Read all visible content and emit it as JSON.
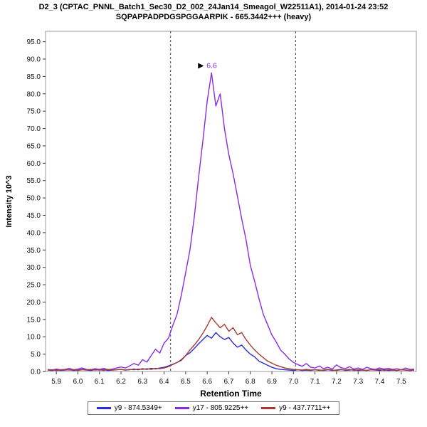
{
  "chart_data": {
    "type": "line",
    "title": "D2_3 (CPTAC_PNNL_Batch1_Sec30_D2_002_24Jan14_Smeagol_W22511A1), 2014-01-24 23:52",
    "subtitle": "SQPAPPADPDGSPGGAARPIK - 665.3442+++ (heavy)",
    "xlabel": "Retention Time",
    "ylabel": "Intensity 10^3",
    "xlim": [
      5.85,
      7.57
    ],
    "ylim": [
      0,
      98
    ],
    "x_ticks": [
      5.9,
      6.0,
      6.1,
      6.2,
      6.3,
      6.4,
      6.5,
      6.6,
      6.7,
      6.8,
      6.9,
      7.0,
      7.1,
      7.2,
      7.3,
      7.4,
      7.5
    ],
    "y_ticks": [
      0,
      5,
      10,
      15,
      20,
      25,
      30,
      35,
      40,
      45,
      50,
      55,
      60,
      65,
      70,
      75,
      80,
      85,
      90,
      95
    ],
    "grid": false,
    "legend_position": "bottom",
    "boundaries": [
      6.43,
      7.01
    ],
    "annotation": {
      "x": 6.62,
      "y": 86.0,
      "label": "6.6",
      "color": "#8a2be2"
    },
    "x": [
      5.86,
      5.88,
      5.9,
      5.92,
      5.94,
      5.96,
      5.98,
      6.0,
      6.02,
      6.04,
      6.06,
      6.08,
      6.1,
      6.12,
      6.14,
      6.16,
      6.18,
      6.2,
      6.22,
      6.24,
      6.26,
      6.28,
      6.3,
      6.32,
      6.34,
      6.36,
      6.38,
      6.4,
      6.42,
      6.44,
      6.46,
      6.48,
      6.5,
      6.52,
      6.54,
      6.56,
      6.58,
      6.6,
      6.62,
      6.64,
      6.66,
      6.68,
      6.7,
      6.72,
      6.74,
      6.76,
      6.78,
      6.8,
      6.82,
      6.84,
      6.86,
      6.88,
      6.9,
      6.92,
      6.94,
      6.96,
      6.98,
      7.0,
      7.02,
      7.04,
      7.06,
      7.08,
      7.1,
      7.12,
      7.14,
      7.16,
      7.18,
      7.2,
      7.22,
      7.24,
      7.26,
      7.28,
      7.3,
      7.32,
      7.34,
      7.36,
      7.38,
      7.4,
      7.42,
      7.44,
      7.46,
      7.48,
      7.5,
      7.52,
      7.54,
      7.56
    ],
    "series": [
      {
        "name": "y9 - 874.5349+",
        "color": "#2b2bd5",
        "values": [
          0.4,
          0.3,
          0.5,
          0.3,
          0.4,
          0.5,
          0.3,
          0.4,
          0.6,
          0.4,
          0.3,
          0.5,
          0.4,
          0.5,
          0.3,
          0.4,
          0.5,
          0.6,
          0.4,
          0.5,
          0.7,
          0.5,
          0.8,
          0.6,
          0.9,
          0.7,
          1.0,
          1.2,
          1.6,
          2.1,
          2.6,
          3.4,
          4.6,
          5.4,
          6.6,
          8.0,
          9.2,
          10.4,
          9.6,
          11.2,
          10.0,
          9.2,
          9.8,
          8.2,
          7.0,
          7.6,
          6.2,
          5.0,
          4.2,
          3.0,
          2.4,
          1.8,
          1.2,
          0.8,
          0.6,
          0.5,
          0.4,
          0.3,
          0.5,
          0.3,
          0.4,
          0.3,
          0.5,
          0.4,
          0.3,
          0.5,
          0.3,
          0.4,
          0.6,
          0.3,
          0.4,
          0.5,
          0.3,
          0.4,
          0.3,
          0.5,
          0.4,
          0.3,
          0.5,
          0.3,
          0.4,
          0.3,
          0.5,
          0.4,
          0.3,
          0.4
        ]
      },
      {
        "name": "y17 - 805.9225++",
        "color": "#8a2be2",
        "values": [
          0.6,
          0.4,
          0.7,
          0.5,
          0.6,
          0.9,
          0.5,
          0.7,
          1.0,
          0.6,
          0.5,
          0.8,
          0.6,
          0.9,
          0.5,
          0.7,
          1.0,
          1.3,
          1.0,
          1.6,
          2.3,
          1.8,
          3.4,
          2.7,
          4.6,
          6.4,
          5.3,
          8.2,
          9.6,
          13.2,
          16.5,
          22.0,
          28.5,
          35.0,
          44.5,
          56.0,
          66.5,
          78.0,
          86.0,
          76.5,
          80.0,
          70.0,
          62.5,
          57.0,
          50.5,
          44.0,
          38.0,
          30.5,
          26.0,
          21.0,
          16.5,
          13.5,
          10.5,
          8.5,
          6.2,
          5.0,
          3.6,
          2.6,
          2.0,
          1.5,
          2.3,
          1.2,
          1.0,
          1.6,
          0.8,
          1.2,
          0.7,
          1.9,
          1.1,
          0.8,
          1.4,
          0.7,
          1.0,
          0.6,
          1.2,
          0.8,
          0.6,
          1.0,
          0.7,
          0.9,
          0.6,
          0.8,
          0.5,
          1.0,
          0.6,
          0.7
        ]
      },
      {
        "name": "y9 - 437.7711++",
        "color": "#a23c32",
        "values": [
          0.4,
          0.5,
          0.3,
          0.4,
          0.6,
          0.4,
          0.5,
          0.3,
          0.5,
          0.4,
          0.6,
          0.4,
          0.5,
          0.3,
          0.6,
          0.4,
          0.5,
          0.6,
          0.4,
          0.6,
          0.5,
          0.7,
          0.6,
          0.8,
          0.6,
          0.9,
          0.8,
          1.0,
          1.4,
          2.0,
          2.6,
          3.2,
          4.6,
          6.2,
          7.6,
          9.2,
          11.0,
          13.2,
          15.6,
          14.0,
          12.6,
          13.6,
          11.6,
          12.6,
          10.6,
          11.2,
          9.2,
          7.6,
          6.2,
          5.0,
          4.0,
          3.0,
          2.4,
          1.8,
          1.4,
          1.0,
          0.8,
          0.6,
          0.5,
          0.4,
          0.6,
          0.4,
          0.5,
          0.3,
          0.4,
          0.6,
          0.4,
          0.3,
          0.5,
          0.4,
          0.6,
          0.3,
          0.5,
          0.4,
          0.3,
          0.5,
          0.4,
          0.6,
          0.3,
          0.5,
          0.4,
          0.3,
          0.5,
          0.4,
          0.3,
          0.4
        ]
      }
    ]
  }
}
